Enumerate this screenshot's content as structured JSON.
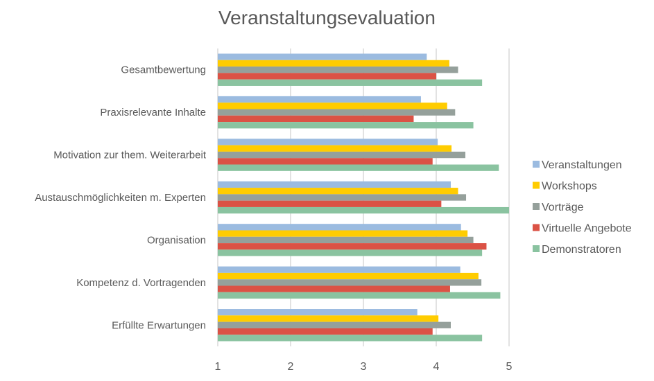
{
  "chart_data": {
    "type": "bar",
    "orientation": "horizontal",
    "title": "Veranstaltungsevaluation",
    "xlabel": "",
    "ylabel": "",
    "xlim": [
      1,
      5
    ],
    "xticks": [
      "1",
      "2",
      "3",
      "4",
      "5"
    ],
    "grid": true,
    "legend_position": "right",
    "categories": [
      "Gesamtbewertung",
      "Praxisrelevante Inhalte",
      "Motivation zur them. Weiterarbeit",
      "Austauschmöglichkeiten m. Experten",
      "Organisation",
      "Kompetenz d. Vortragenden",
      "Erfüllte Erwartungen"
    ],
    "series": [
      {
        "name": "Veranstaltungen",
        "color": "#9BBBE0",
        "values": [
          3.87,
          3.79,
          4.02,
          4.2,
          4.34,
          4.33,
          3.74
        ]
      },
      {
        "name": "Workshops",
        "color": "#FFCC00",
        "values": [
          4.18,
          4.15,
          4.21,
          4.3,
          4.43,
          4.58,
          4.03
        ]
      },
      {
        "name": "Vorträge",
        "color": "#95A09B",
        "values": [
          4.3,
          4.26,
          4.4,
          4.41,
          4.51,
          4.62,
          4.2
        ]
      },
      {
        "name": "Virtuelle Angebote",
        "color": "#DB5245",
        "values": [
          4.0,
          3.69,
          3.95,
          4.07,
          4.69,
          4.19,
          3.95
        ]
      },
      {
        "name": "Demonstratoren",
        "color": "#8AC3A0",
        "values": [
          4.63,
          4.51,
          4.86,
          5.0,
          4.63,
          4.88,
          4.63
        ]
      }
    ]
  }
}
